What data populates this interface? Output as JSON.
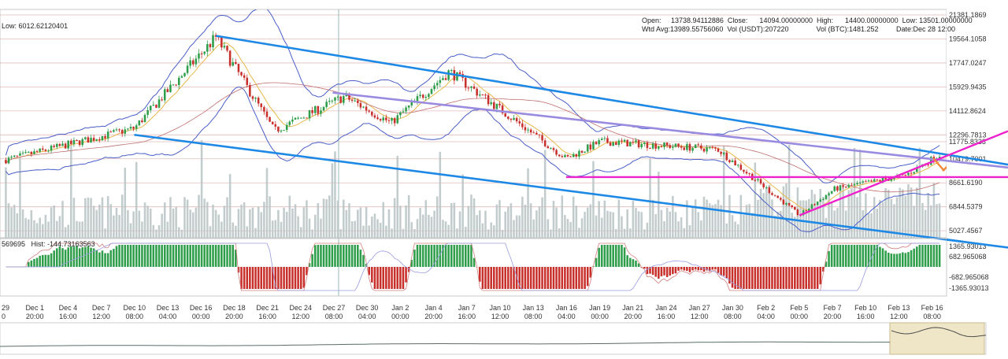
{
  "header": {
    "low_left": "Low: 6012.62120401",
    "ohlc_line": "Open:     13738.94112886  Close:      14094.00000000  High:      14400.00000000  Low: 13501.00000000",
    "vol_line": "Wtd Avg:13989.55756060  Vol (USDT):207220              Vol (BTC):1481.252         Date:Dec 28 12:00"
  },
  "macd_label": "569695   Hist: -144.73163563",
  "price_axis": {
    "labels": [
      "21381.1869",
      "19564.1058",
      "17747.0247",
      "15929.9435",
      "14112.8624",
      "12296.7813",
      "11775.8333",
      "10479.7001",
      "8661.6190",
      "6844.5379",
      "5027.4567"
    ],
    "values": [
      21381.1869,
      19564.1058,
      17747.0247,
      15929.9435,
      14112.8624,
      12296.7813,
      11775.8333,
      10479.7001,
      8661.619,
      6844.5379,
      5027.4567
    ]
  },
  "macd_axis": {
    "labels": [
      "1365.93013",
      "682.965068",
      "-682.965068",
      "-1365.93013"
    ]
  },
  "x_axis": {
    "dates": [
      "29",
      "Dec 1",
      "Dec 4",
      "Dec 7",
      "Dec 10",
      "Dec 13",
      "Dec 16",
      "Dec 18",
      "Dec 21",
      "Dec 24",
      "Dec 27",
      "Dec 30",
      "Jan 2",
      "Jan 4",
      "Jan 7",
      "Jan 10",
      "Jan 13",
      "Jan 16",
      "Jan 19",
      "Jan 21",
      "Jan 24",
      "Jan 27",
      "Jan 30",
      "Feb 2",
      "Feb 5",
      "Feb 7",
      "Feb 10",
      "Feb 13",
      "Feb 16"
    ],
    "times": [
      "0",
      "20:00",
      "16:00",
      "12:00",
      "08:00",
      "04:00",
      "00:00",
      "20:00",
      "16:00",
      "12:00",
      "08:00",
      "04:00",
      "00:00",
      "20:00",
      "16:00",
      "12:00",
      "08:00",
      "04:00",
      "00:00",
      "20:00",
      "16:00",
      "12:00",
      "08:00",
      "04:00",
      "00:00",
      "20:00",
      "16:00",
      "12:00",
      "08:00"
    ]
  },
  "colors": {
    "up": "#2e9e4a",
    "down": "#c8302c",
    "volume": "#b9c3c3",
    "channel": "#1e88e5",
    "purple_trend": "#9a8be0",
    "support": "#ee22cc",
    "bollinger": "#4b5fc8",
    "ma_fast": "#e8b84a",
    "ma_slow": "#c07070",
    "grid_red": "#d9a0a0",
    "arrow": "#f08a3a"
  },
  "chart_data": {
    "type": "candlestick",
    "title": "",
    "symbol_pair": "BTC/USDT",
    "x_range": [
      "Nov 29",
      "Feb 17"
    ],
    "y_range": [
      5027.4567,
      21381.1869
    ],
    "key_points": [
      {
        "date": "Nov 29",
        "price": 10400
      },
      {
        "date": "Dec 10",
        "price": 12800
      },
      {
        "date": "Dec 17",
        "price": 19700
      },
      {
        "date": "Dec 22",
        "price": 12600
      },
      {
        "date": "Dec 28",
        "price": 15200
      },
      {
        "date": "Jan 1",
        "price": 13200
      },
      {
        "date": "Jan 6",
        "price": 17100
      },
      {
        "date": "Jan 16",
        "price": 10500
      },
      {
        "date": "Jan 19",
        "price": 11800
      },
      {
        "date": "Jan 29",
        "price": 11200
      },
      {
        "date": "Feb 5",
        "price": 6200
      },
      {
        "date": "Feb 8",
        "price": 8200
      },
      {
        "date": "Feb 14",
        "price": 9200
      },
      {
        "date": "Feb 17",
        "price": 10800
      }
    ],
    "trendlines": [
      {
        "name": "channel-upper",
        "from": {
          "date": "Dec 17",
          "price": 19800
        },
        "to": {
          "date": "Feb 19",
          "price": 10600
        }
      },
      {
        "name": "channel-lower",
        "from": {
          "date": "Dec 10",
          "price": 12300
        },
        "to": {
          "date": "Feb 19",
          "price": 4200
        }
      },
      {
        "name": "purple-resistance",
        "from": {
          "date": "Dec 27",
          "price": 15500
        },
        "to": {
          "date": "Feb 19",
          "price": 10200
        }
      },
      {
        "name": "horizontal-support",
        "from": {
          "date": "Jan 16",
          "price": 9100
        },
        "to": {
          "date": "Feb 19",
          "price": 9100
        }
      },
      {
        "name": "rising-support",
        "from": {
          "date": "Feb 5",
          "price": 6200
        },
        "to": {
          "date": "Feb 19",
          "price": 11200
        }
      }
    ],
    "macd_range": [
      -1365.93013,
      1365.93013
    ]
  }
}
